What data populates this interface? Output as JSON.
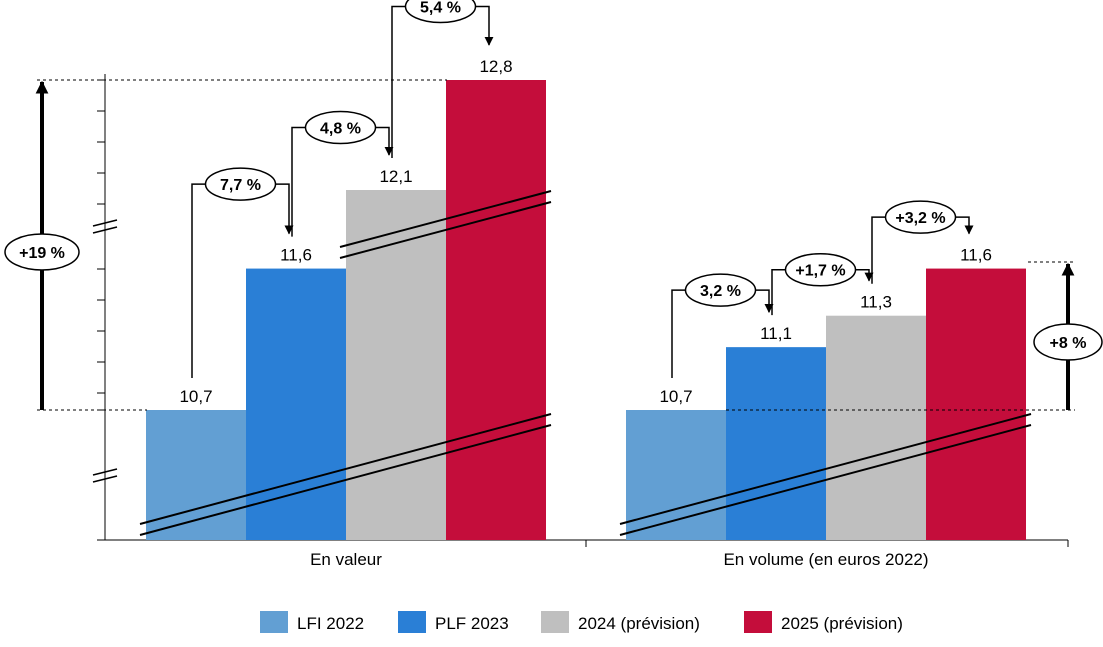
{
  "chart_data": {
    "type": "bar",
    "categories": [
      "En valeur",
      "En volume (en euros 2022)"
    ],
    "series": [
      {
        "name": "LFI 2022",
        "color": "#629fd3",
        "values": [
          10.7,
          10.7
        ],
        "labels": [
          "10,7",
          "10,7"
        ]
      },
      {
        "name": "PLF 2023",
        "color": "#2a7fd6",
        "values": [
          11.6,
          11.1
        ],
        "labels": [
          "11,6",
          "11,1"
        ]
      },
      {
        "name": "2024 (prévision)",
        "color": "#bfbfbf",
        "values": [
          12.1,
          11.3
        ],
        "labels": [
          "12,1",
          "11,3"
        ]
      },
      {
        "name": "2025 (prévision)",
        "color": "#c40d3b",
        "values": [
          12.8,
          11.6
        ],
        "labels": [
          "12,8",
          "11,6"
        ]
      }
    ],
    "step_changes": [
      [
        "7,7 %",
        "4,8 %",
        "5,4 %"
      ],
      [
        "3,2 %",
        "+1,7 %",
        "+3,2 %"
      ]
    ],
    "total_changes": [
      "+19 %",
      "+8 %"
    ],
    "axis_break": true,
    "grid": false,
    "legend_position": "bottom"
  }
}
